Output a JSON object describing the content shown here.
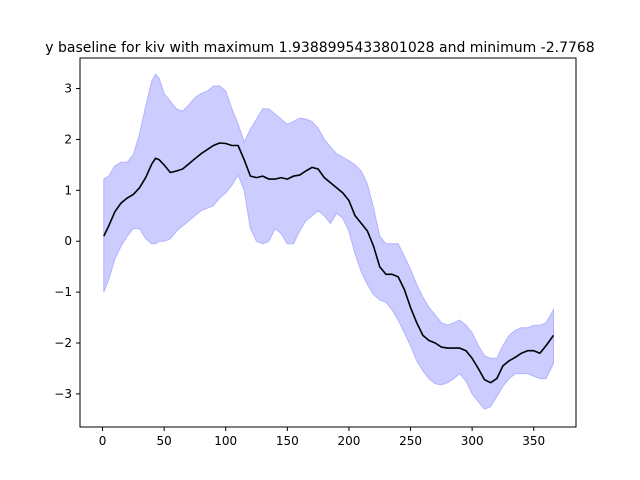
{
  "chart_data": {
    "type": "area",
    "title": "y baseline for kiv with maximum 1.9388995433801028 and minimum -2.7768",
    "xlabel": "",
    "ylabel": "",
    "xlim": [
      -18.3,
      384.3
    ],
    "ylim": [
      -3.65,
      3.6
    ],
    "xticks": [
      0,
      50,
      100,
      150,
      200,
      250,
      300,
      350
    ],
    "yticks": [
      -3,
      -2,
      -1,
      0,
      1,
      2,
      3
    ],
    "grid": false,
    "colors": {
      "line": "#000000",
      "band": "#ccccff",
      "band_edge": "#b3b3ff"
    },
    "series": [
      {
        "role": "mean-line",
        "x": [
          1,
          5,
          10,
          15,
          20,
          25,
          30,
          35,
          40,
          43,
          46,
          50,
          55,
          60,
          65,
          70,
          75,
          80,
          85,
          90,
          95,
          100,
          105,
          110,
          115,
          120,
          125,
          130,
          135,
          140,
          145,
          150,
          155,
          160,
          165,
          170,
          175,
          180,
          185,
          190,
          195,
          200,
          205,
          210,
          215,
          220,
          225,
          230,
          235,
          240,
          245,
          250,
          255,
          260,
          265,
          270,
          275,
          280,
          285,
          290,
          295,
          300,
          305,
          310,
          315,
          320,
          325,
          330,
          335,
          340,
          345,
          350,
          355,
          360,
          366
        ],
        "y": [
          0.1,
          0.3,
          0.58,
          0.75,
          0.85,
          0.92,
          1.05,
          1.25,
          1.52,
          1.63,
          1.6,
          1.5,
          1.35,
          1.38,
          1.42,
          1.52,
          1.62,
          1.72,
          1.8,
          1.88,
          1.93,
          1.92,
          1.88,
          1.88,
          1.6,
          1.28,
          1.25,
          1.28,
          1.22,
          1.22,
          1.25,
          1.22,
          1.28,
          1.3,
          1.38,
          1.45,
          1.42,
          1.25,
          1.15,
          1.05,
          0.95,
          0.8,
          0.5,
          0.35,
          0.2,
          -0.1,
          -0.5,
          -0.65,
          -0.65,
          -0.7,
          -0.95,
          -1.3,
          -1.6,
          -1.85,
          -1.95,
          -2.0,
          -2.08,
          -2.1,
          -2.1,
          -2.1,
          -2.15,
          -2.3,
          -2.5,
          -2.72,
          -2.78,
          -2.7,
          -2.45,
          -2.35,
          -2.28,
          -2.2,
          -2.15,
          -2.15,
          -2.2,
          -2.05,
          -1.85
        ]
      },
      {
        "role": "band-upper",
        "x": [
          1,
          5,
          10,
          15,
          20,
          25,
          30,
          35,
          40,
          43,
          46,
          50,
          55,
          60,
          65,
          70,
          75,
          80,
          85,
          90,
          95,
          100,
          105,
          110,
          115,
          120,
          125,
          130,
          135,
          140,
          145,
          150,
          155,
          160,
          165,
          170,
          175,
          180,
          185,
          190,
          195,
          200,
          205,
          210,
          215,
          220,
          225,
          230,
          235,
          240,
          245,
          250,
          255,
          260,
          265,
          270,
          275,
          280,
          285,
          290,
          295,
          300,
          305,
          310,
          315,
          320,
          325,
          330,
          335,
          340,
          345,
          350,
          355,
          360,
          366
        ],
        "y": [
          1.22,
          1.28,
          1.48,
          1.55,
          1.55,
          1.7,
          2.1,
          2.65,
          3.15,
          3.28,
          3.2,
          2.9,
          2.75,
          2.6,
          2.55,
          2.68,
          2.82,
          2.9,
          2.95,
          3.05,
          3.05,
          2.95,
          2.6,
          2.3,
          1.95,
          2.2,
          2.4,
          2.6,
          2.6,
          2.5,
          2.4,
          2.3,
          2.35,
          2.42,
          2.4,
          2.35,
          2.22,
          2.0,
          1.85,
          1.72,
          1.65,
          1.58,
          1.5,
          1.38,
          1.12,
          0.65,
          0.1,
          -0.05,
          -0.05,
          -0.05,
          -0.3,
          -0.55,
          -0.85,
          -1.1,
          -1.3,
          -1.45,
          -1.6,
          -1.65,
          -1.6,
          -1.55,
          -1.65,
          -1.8,
          -2.05,
          -2.25,
          -2.3,
          -2.3,
          -2.05,
          -1.85,
          -1.75,
          -1.7,
          -1.7,
          -1.65,
          -1.65,
          -1.6,
          -1.35
        ]
      },
      {
        "role": "band-lower",
        "x": [
          1,
          5,
          10,
          15,
          20,
          25,
          30,
          35,
          40,
          43,
          46,
          50,
          55,
          60,
          65,
          70,
          75,
          80,
          85,
          90,
          95,
          100,
          105,
          110,
          115,
          120,
          125,
          130,
          135,
          140,
          145,
          150,
          155,
          160,
          165,
          170,
          175,
          180,
          185,
          190,
          195,
          200,
          205,
          210,
          215,
          220,
          225,
          230,
          235,
          240,
          245,
          250,
          255,
          260,
          265,
          270,
          275,
          280,
          285,
          290,
          295,
          300,
          305,
          310,
          315,
          320,
          325,
          330,
          335,
          340,
          345,
          350,
          355,
          360,
          366
        ],
        "y": [
          -1.0,
          -0.75,
          -0.35,
          -0.1,
          0.1,
          0.25,
          0.25,
          0.05,
          -0.05,
          -0.05,
          0.0,
          0.0,
          0.05,
          0.2,
          0.3,
          0.4,
          0.5,
          0.6,
          0.65,
          0.7,
          0.85,
          0.95,
          1.1,
          1.3,
          1.0,
          0.25,
          0.0,
          -0.05,
          0.0,
          0.25,
          0.15,
          -0.05,
          -0.05,
          0.2,
          0.4,
          0.5,
          0.6,
          0.5,
          0.35,
          0.55,
          0.45,
          0.2,
          -0.25,
          -0.6,
          -0.85,
          -1.05,
          -1.15,
          -1.2,
          -1.35,
          -1.55,
          -1.8,
          -2.05,
          -2.35,
          -2.55,
          -2.7,
          -2.8,
          -2.82,
          -2.78,
          -2.7,
          -2.6,
          -2.75,
          -3.0,
          -3.15,
          -3.3,
          -3.25,
          -3.05,
          -2.85,
          -2.7,
          -2.6,
          -2.6,
          -2.6,
          -2.65,
          -2.7,
          -2.7,
          -2.4
        ]
      }
    ]
  }
}
